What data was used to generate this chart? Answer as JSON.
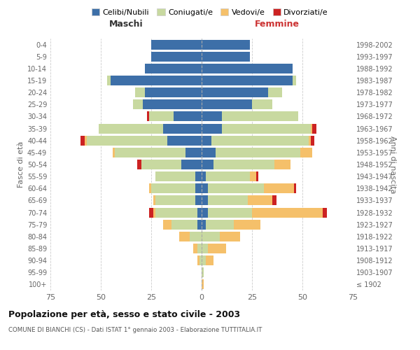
{
  "age_groups": [
    "100+",
    "95-99",
    "90-94",
    "85-89",
    "80-84",
    "75-79",
    "70-74",
    "65-69",
    "60-64",
    "55-59",
    "50-54",
    "45-49",
    "40-44",
    "35-39",
    "30-34",
    "25-29",
    "20-24",
    "15-19",
    "10-14",
    "5-9",
    "0-4"
  ],
  "birth_years": [
    "≤ 1902",
    "1903-1907",
    "1908-1912",
    "1913-1917",
    "1918-1922",
    "1923-1927",
    "1928-1932",
    "1933-1937",
    "1938-1942",
    "1943-1947",
    "1948-1952",
    "1953-1957",
    "1958-1962",
    "1963-1967",
    "1968-1972",
    "1973-1977",
    "1978-1982",
    "1983-1987",
    "1988-1992",
    "1993-1997",
    "1998-2002"
  ],
  "maschi": {
    "celibe": [
      0,
      0,
      0,
      0,
      0,
      2,
      2,
      3,
      3,
      3,
      10,
      8,
      17,
      19,
      14,
      29,
      28,
      45,
      28,
      25,
      25
    ],
    "coniugato": [
      0,
      0,
      1,
      2,
      6,
      13,
      21,
      20,
      22,
      20,
      20,
      35,
      40,
      32,
      12,
      5,
      5,
      2,
      0,
      0,
      0
    ],
    "vedovo": [
      0,
      0,
      1,
      2,
      5,
      4,
      1,
      1,
      1,
      0,
      0,
      1,
      1,
      0,
      0,
      0,
      0,
      0,
      0,
      0,
      0
    ],
    "divorziato": [
      0,
      0,
      0,
      0,
      0,
      0,
      2,
      0,
      0,
      0,
      2,
      0,
      2,
      0,
      1,
      0,
      0,
      0,
      0,
      0,
      0
    ]
  },
  "femmine": {
    "nubile": [
      0,
      0,
      0,
      0,
      0,
      2,
      3,
      3,
      3,
      2,
      6,
      7,
      5,
      10,
      10,
      25,
      33,
      45,
      45,
      24,
      24
    ],
    "coniugata": [
      0,
      1,
      2,
      3,
      9,
      14,
      22,
      20,
      28,
      22,
      30,
      42,
      48,
      44,
      38,
      10,
      7,
      2,
      0,
      0,
      0
    ],
    "vedova": [
      1,
      0,
      4,
      9,
      10,
      13,
      35,
      12,
      15,
      3,
      8,
      6,
      1,
      1,
      0,
      0,
      0,
      0,
      0,
      0,
      0
    ],
    "divorziata": [
      0,
      0,
      0,
      0,
      0,
      0,
      2,
      2,
      1,
      1,
      0,
      0,
      2,
      2,
      0,
      0,
      0,
      0,
      0,
      0,
      0
    ]
  },
  "colors": {
    "celibe": "#3d6fa8",
    "coniugato": "#c8d9a0",
    "vedovo": "#f5c06a",
    "divorziato": "#cc2222"
  },
  "xlim": 75,
  "title": "Popolazione per età, sesso e stato civile - 2003",
  "subtitle": "COMUNE DI BIANCHI (CS) - Dati ISTAT 1° gennaio 2003 - Elaborazione TUTTITALIA.IT",
  "ylabel_left": "Fasce di età",
  "ylabel_right": "Anni di nascita",
  "xlabel_maschi": "Maschi",
  "xlabel_femmine": "Femmine",
  "legend_labels": [
    "Celibi/Nubili",
    "Coniugati/e",
    "Vedovi/e",
    "Divorziati/e"
  ],
  "bg_color": "#ffffff",
  "grid_color": "#cccccc"
}
